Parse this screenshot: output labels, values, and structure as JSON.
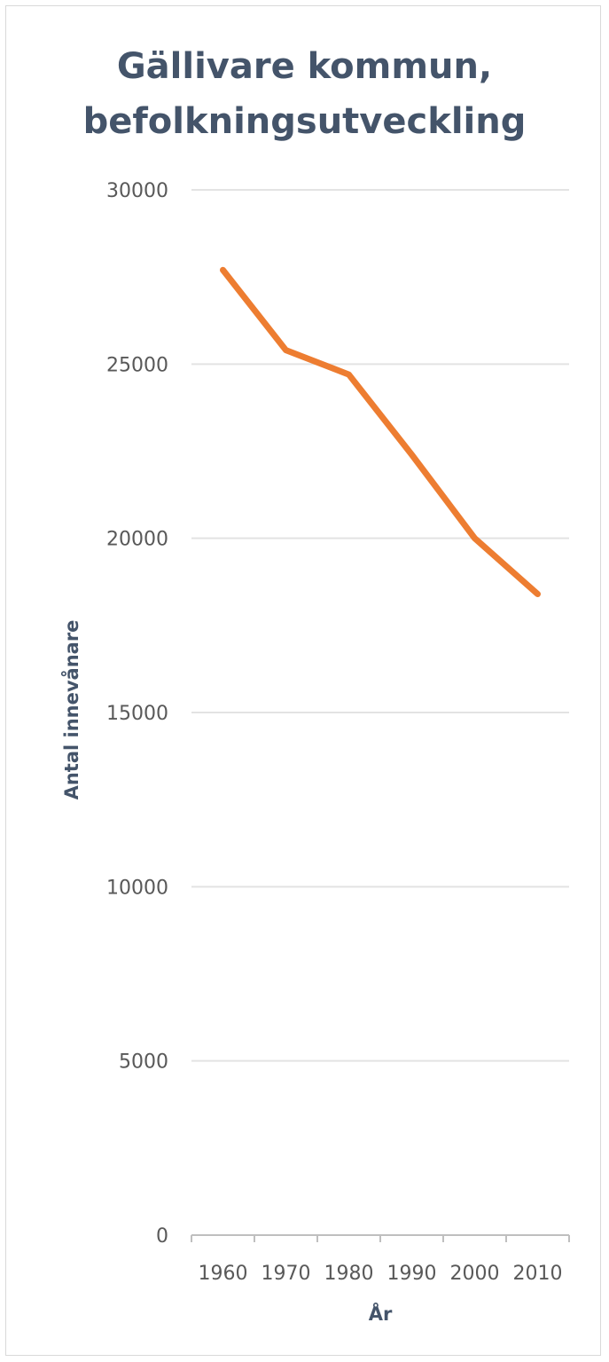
{
  "chart_data": {
    "type": "line",
    "title": [
      "Gällivare kommun,",
      "befolkningsutveckling"
    ],
    "xlabel": "År",
    "ylabel": "Antal innevånare",
    "x": [
      1960,
      1970,
      1980,
      1990,
      2000,
      2010
    ],
    "x_tick_labels": [
      "1960",
      "1970",
      "1980",
      "1990",
      "2000",
      "2010"
    ],
    "y_tick_labels": [
      "0",
      "5000",
      "10000",
      "15000",
      "20000",
      "25000",
      "30000"
    ],
    "ylim": [
      0,
      30000
    ],
    "grid": true,
    "legend": "none",
    "series": [
      {
        "values": [
          27700,
          25400,
          24700,
          22400,
          20000,
          18400
        ],
        "color": "#ed7d31"
      }
    ],
    "colors": {
      "line": "#ed7d31",
      "title": "#44546a",
      "tick_text": "#595959",
      "grid": "#e3e3e3",
      "axis": "#bfbfbf"
    }
  }
}
